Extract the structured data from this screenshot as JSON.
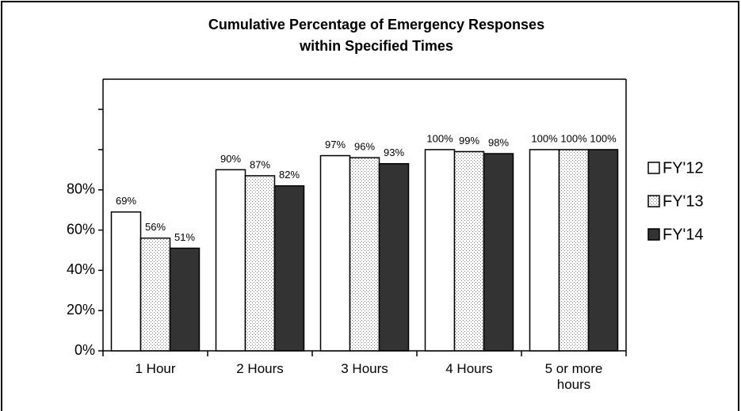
{
  "chart_data": {
    "type": "bar",
    "title": [
      "Cumulative Percentage of Emergency Responses",
      "within Specified Times"
    ],
    "categories": [
      "1 Hour",
      "2 Hours",
      "3 Hours",
      "4 Hours",
      "5 or more hours"
    ],
    "series": [
      {
        "name": "FY'12",
        "color": "#ffffff",
        "values": [
          69,
          90,
          97,
          100,
          100
        ],
        "value_labels": [
          "69%",
          "90%",
          "97%",
          "100%",
          "100%"
        ]
      },
      {
        "name": "FY'13",
        "color": "dotted",
        "values": [
          56,
          87,
          96,
          99,
          100
        ],
        "value_labels": [
          "56%",
          "87%",
          "96%",
          "99%",
          "100%"
        ]
      },
      {
        "name": "FY'14",
        "color": "#333333",
        "values": [
          51,
          82,
          93,
          98,
          100
        ],
        "value_labels": [
          "51%",
          "82%",
          "93%",
          "98%",
          "100%"
        ]
      }
    ],
    "ylim": [
      0,
      135
    ],
    "yticks": [
      {
        "value": 0,
        "label": "0%"
      },
      {
        "value": 20,
        "label": "20%"
      },
      {
        "value": 40,
        "label": "40%"
      },
      {
        "value": 60,
        "label": "60%"
      },
      {
        "value": 80,
        "label": "80%"
      }
    ],
    "unlabeled_yticks": [
      100,
      120
    ],
    "legend": "right",
    "grid": false
  }
}
